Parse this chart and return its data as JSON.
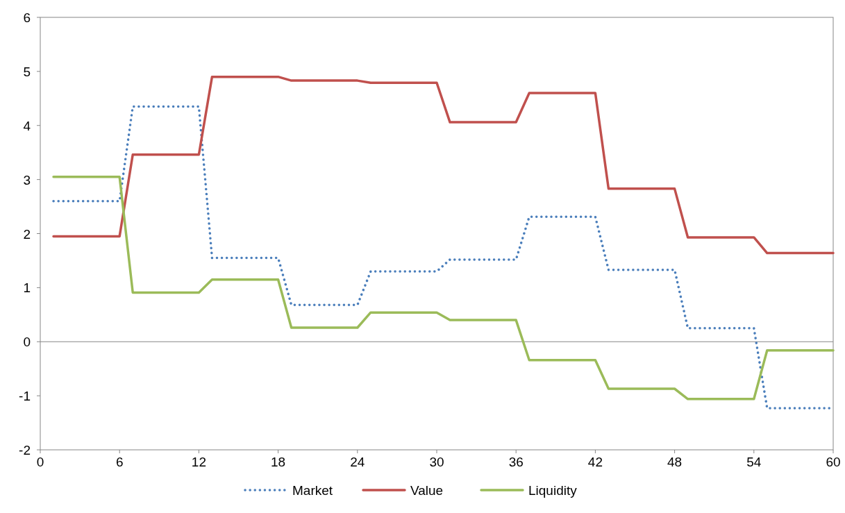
{
  "chart_data": {
    "type": "line",
    "x": [
      1,
      2,
      3,
      4,
      5,
      6,
      7,
      8,
      9,
      10,
      11,
      12,
      13,
      14,
      15,
      16,
      17,
      18,
      19,
      20,
      21,
      22,
      23,
      24,
      25,
      26,
      27,
      28,
      29,
      30,
      31,
      32,
      33,
      34,
      35,
      36,
      37,
      38,
      39,
      40,
      41,
      42,
      43,
      44,
      45,
      46,
      47,
      48,
      49,
      50,
      51,
      52,
      53,
      54,
      55,
      56,
      57,
      58,
      59,
      60
    ],
    "series": [
      {
        "name": "Market",
        "color": "#4a7ebb",
        "line_style": "dotted",
        "values": [
          2.6,
          2.6,
          2.6,
          2.6,
          2.6,
          2.6,
          4.35,
          4.35,
          4.35,
          4.35,
          4.35,
          4.35,
          1.55,
          1.55,
          1.55,
          1.55,
          1.55,
          1.55,
          0.68,
          0.68,
          0.68,
          0.68,
          0.68,
          0.68,
          1.3,
          1.3,
          1.3,
          1.3,
          1.3,
          1.3,
          1.52,
          1.52,
          1.52,
          1.52,
          1.52,
          1.52,
          2.31,
          2.31,
          2.31,
          2.31,
          2.31,
          2.31,
          1.33,
          1.33,
          1.33,
          1.33,
          1.33,
          1.33,
          0.25,
          0.25,
          0.25,
          0.25,
          0.25,
          0.25,
          -1.23,
          -1.23,
          -1.23,
          -1.23,
          -1.23,
          -1.23
        ]
      },
      {
        "name": "Value",
        "color": "#c0504d",
        "line_style": "solid",
        "values": [
          1.95,
          1.95,
          1.95,
          1.95,
          1.95,
          1.95,
          3.46,
          3.46,
          3.46,
          3.46,
          3.46,
          3.46,
          4.9,
          4.9,
          4.9,
          4.9,
          4.9,
          4.9,
          4.83,
          4.83,
          4.83,
          4.83,
          4.83,
          4.83,
          4.79,
          4.79,
          4.79,
          4.79,
          4.79,
          4.79,
          4.06,
          4.06,
          4.06,
          4.06,
          4.06,
          4.06,
          4.6,
          4.6,
          4.6,
          4.6,
          4.6,
          4.6,
          2.83,
          2.83,
          2.83,
          2.83,
          2.83,
          2.83,
          1.93,
          1.93,
          1.93,
          1.93,
          1.93,
          1.93,
          1.64,
          1.64,
          1.64,
          1.64,
          1.64,
          1.64
        ]
      },
      {
        "name": "Liquidity",
        "color": "#9bbb59",
        "line_style": "solid",
        "values": [
          3.05,
          3.05,
          3.05,
          3.05,
          3.05,
          3.05,
          0.91,
          0.91,
          0.91,
          0.91,
          0.91,
          0.91,
          1.15,
          1.15,
          1.15,
          1.15,
          1.15,
          1.15,
          0.26,
          0.26,
          0.26,
          0.26,
          0.26,
          0.26,
          0.54,
          0.54,
          0.54,
          0.54,
          0.54,
          0.54,
          0.4,
          0.4,
          0.4,
          0.4,
          0.4,
          0.4,
          -0.34,
          -0.34,
          -0.34,
          -0.34,
          -0.34,
          -0.34,
          -0.87,
          -0.87,
          -0.87,
          -0.87,
          -0.87,
          -0.87,
          -1.06,
          -1.06,
          -1.06,
          -1.06,
          -1.06,
          -1.06,
          -0.16,
          -0.16,
          -0.16,
          -0.16,
          -0.16,
          -0.16
        ]
      }
    ],
    "xlim": [
      0,
      60
    ],
    "xticks": [
      0,
      6,
      12,
      18,
      24,
      30,
      36,
      42,
      48,
      54,
      60
    ],
    "ylim": [
      -2,
      6
    ],
    "yticks": [
      -2,
      -1,
      0,
      1,
      2,
      3,
      4,
      5,
      6
    ],
    "ref_lines": [
      {
        "axis": "y",
        "value": 0,
        "color": "#868686"
      }
    ],
    "grid": false,
    "legend": "bottom",
    "marker": "none"
  }
}
